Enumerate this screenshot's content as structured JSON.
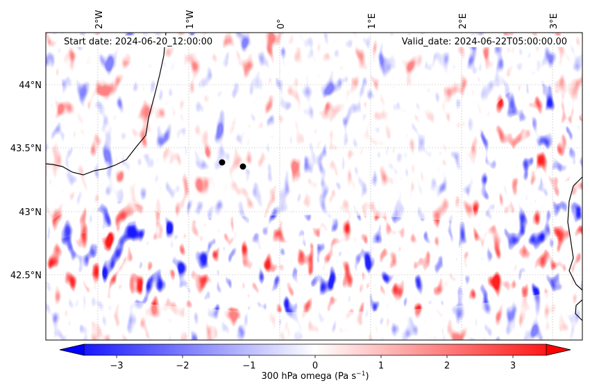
{
  "annotations": {
    "start_date": "Start date: 2024-06-20_12:00:00",
    "valid_date": "Valid_date: 2024-06-22T05:00:00.00"
  },
  "map": {
    "lon_labels": [
      "2°W",
      "1°W",
      "0°",
      "1°E",
      "2°E",
      "3°E"
    ],
    "lat_labels": [
      "44°N",
      "43.5°N",
      "43°N",
      "42.5°N"
    ]
  },
  "colorbar": {
    "ticks": [
      "−3",
      "−2",
      "−1",
      "0",
      "1",
      "2",
      "3"
    ],
    "label": "300 hPa omega (Pa s",
    "label_sup": "−1",
    "label_close": ")"
  },
  "colors": {
    "negative": "#0000ff",
    "zero": "#ffffff",
    "positive": "#ff0000",
    "coastline": "#000000",
    "marker": "#000000"
  },
  "markers": [
    {
      "name": "point-marker-west"
    },
    {
      "name": "point-marker-east"
    }
  ]
}
